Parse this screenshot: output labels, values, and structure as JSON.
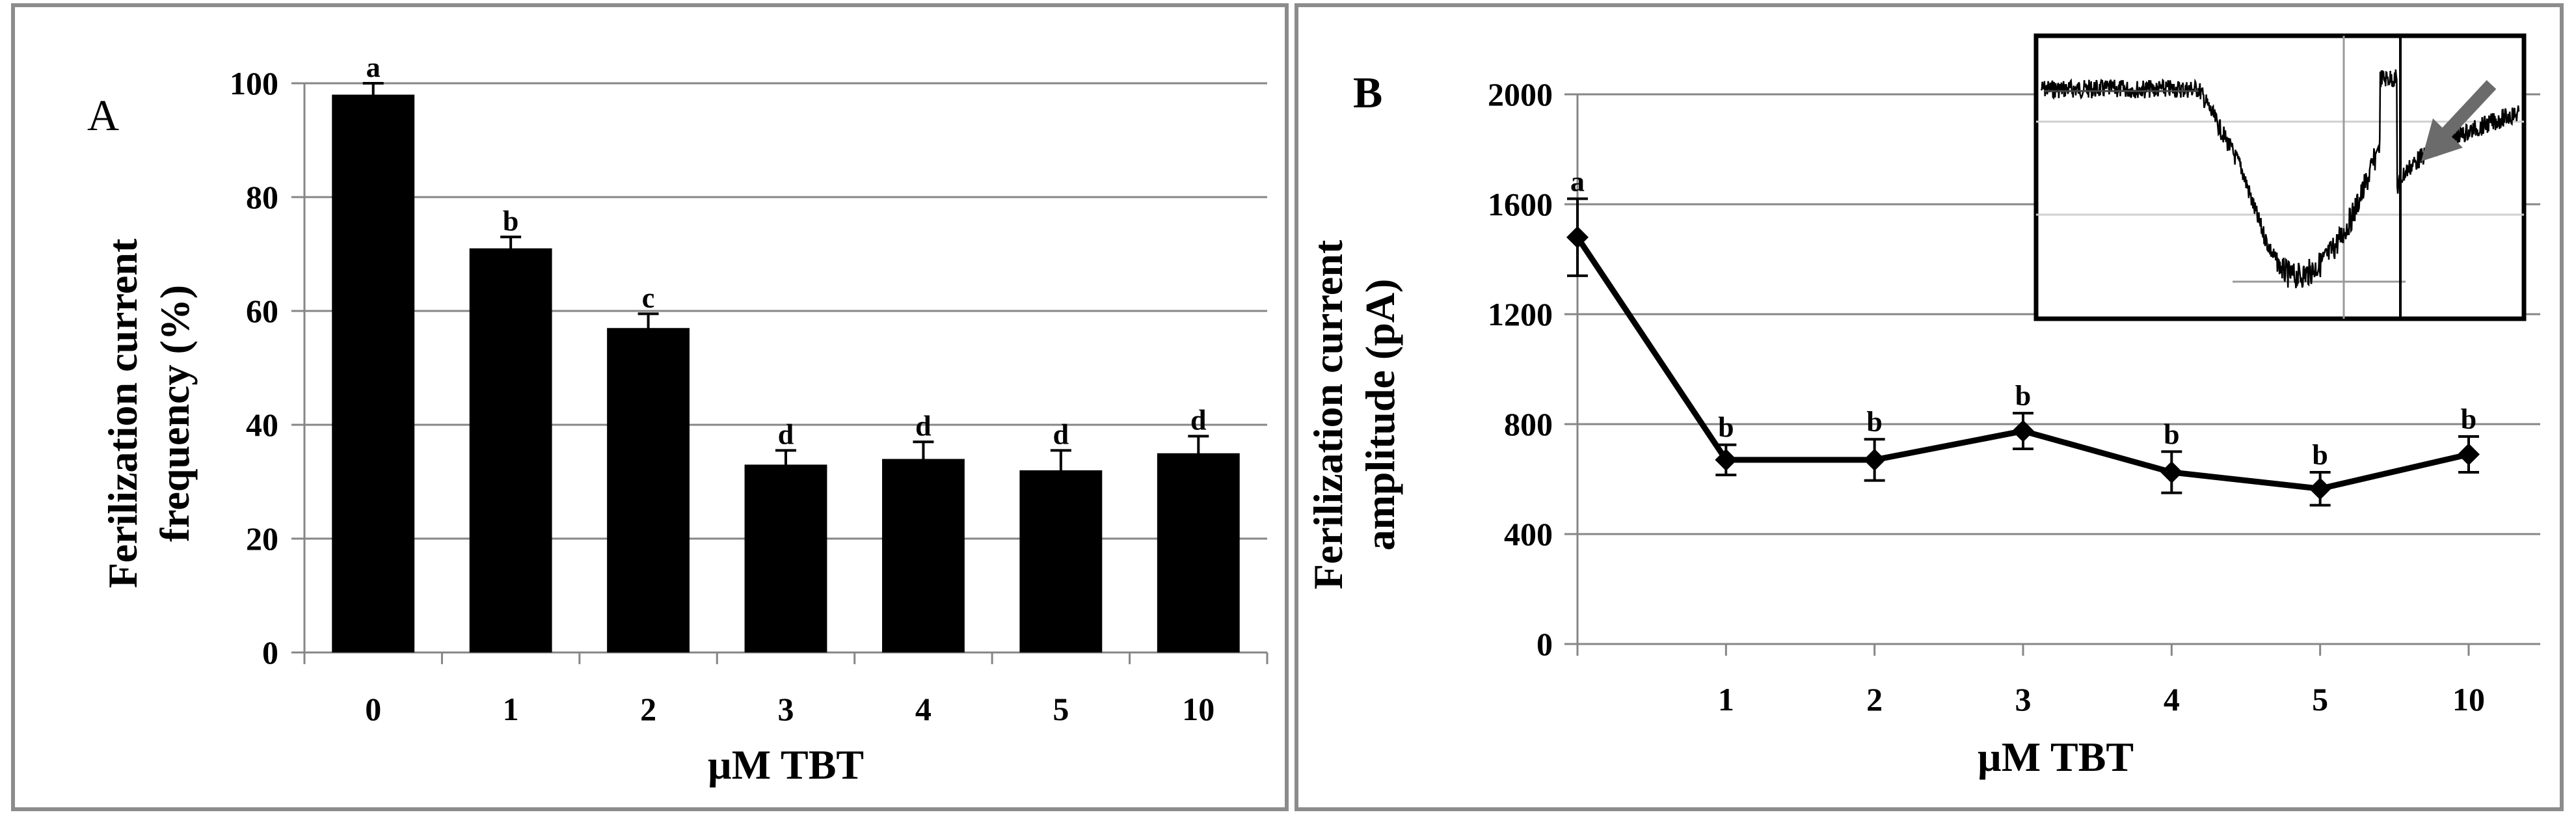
{
  "chart_data": [
    {
      "type": "bar",
      "panel_label": "A",
      "categories": [
        "0",
        "1",
        "2",
        "3",
        "4",
        "5",
        "10"
      ],
      "values": [
        98,
        71,
        57,
        33,
        34,
        32,
        35
      ],
      "errors": [
        2,
        2,
        2.5,
        2.5,
        3,
        3.5,
        3
      ],
      "significance": [
        "a",
        "b",
        "c",
        "d",
        "d",
        "d",
        "d"
      ],
      "xlabel": "µM TBT",
      "ylabel": "Ferilization current frequency (%)",
      "ylabel_lines": [
        "Ferilization current",
        "frequency (%)"
      ],
      "ylim": [
        0,
        100
      ],
      "yticks": [
        0,
        20,
        40,
        60,
        80,
        100
      ],
      "grid": true,
      "bar_color": "#000000"
    },
    {
      "type": "line",
      "panel_label": "B",
      "x": [
        "",
        "1",
        "2",
        "3",
        "4",
        "5",
        "10"
      ],
      "values": [
        1480,
        670,
        670,
        775,
        625,
        565,
        690
      ],
      "errors": [
        140,
        55,
        75,
        65,
        75,
        60,
        65
      ],
      "significance": [
        "a",
        "b",
        "b",
        "b",
        "b",
        "b",
        "b"
      ],
      "xlabel": "µM TBT",
      "ylabel": "Ferilization current amplitude (pA)",
      "ylabel_lines": [
        "Ferilization current",
        "amplitude (pA)"
      ],
      "ylim": [
        0,
        2000
      ],
      "yticks": [
        0,
        400,
        800,
        1200,
        1600,
        2000
      ],
      "grid": true,
      "marker": "diamond",
      "line_color": "#000000",
      "inset": "electrophysiology current trace with arrow"
    }
  ]
}
